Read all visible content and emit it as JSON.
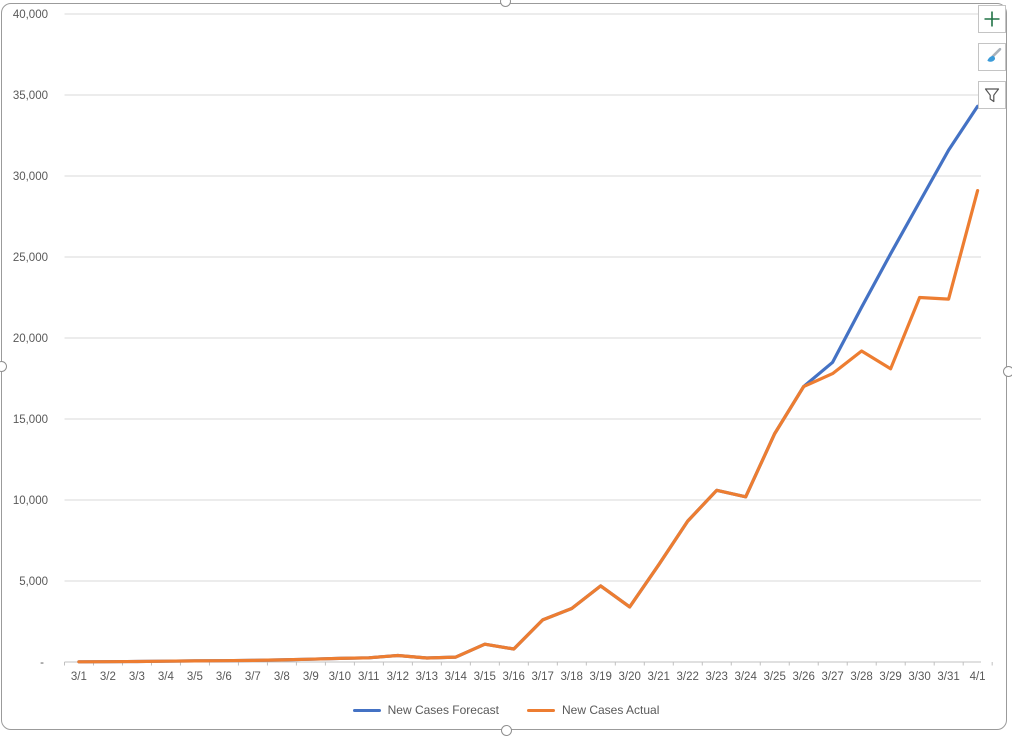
{
  "chart_data": {
    "type": "line",
    "title": "",
    "categories": [
      "3/1",
      "3/2",
      "3/3",
      "3/4",
      "3/5",
      "3/6",
      "3/7",
      "3/8",
      "3/9",
      "3/10",
      "3/11",
      "3/12",
      "3/13",
      "3/14",
      "3/15",
      "3/16",
      "3/17",
      "3/18",
      "3/19",
      "3/20",
      "3/21",
      "3/22",
      "3/23",
      "3/24",
      "3/25",
      "3/26",
      "3/27",
      "3/28",
      "3/29",
      "3/30",
      "3/31",
      "4/1"
    ],
    "series": [
      {
        "name": "New Cases Forecast",
        "color": "#4472C4",
        "values": [
          10,
          20,
          30,
          50,
          70,
          80,
          100,
          130,
          170,
          220,
          260,
          400,
          250,
          300,
          1100,
          800,
          2600,
          3300,
          4700,
          3400,
          6000,
          8700,
          10600,
          10200,
          14100,
          17000,
          18500,
          21900,
          25200,
          28400,
          31600,
          34300
        ]
      },
      {
        "name": "New Cases Actual",
        "color": "#ED7D31",
        "values": [
          10,
          20,
          30,
          50,
          70,
          80,
          100,
          130,
          170,
          220,
          260,
          400,
          250,
          300,
          1100,
          800,
          2600,
          3300,
          4700,
          3400,
          6000,
          8700,
          10600,
          10200,
          14100,
          17000,
          17800,
          19200,
          18100,
          22500,
          22400,
          29100
        ]
      }
    ],
    "ylim": [
      0,
      40000
    ],
    "ytick_step": 5000,
    "ytick_labels": [
      "-",
      "5,000",
      "10,000",
      "15,000",
      "20,000",
      "25,000",
      "30,000",
      "35,000",
      "40,000"
    ],
    "xlabel": "",
    "ylabel": "",
    "grid": true,
    "legend_position": "bottom",
    "axis_text_color": "#595959",
    "gridline_color": "#d9d9d9",
    "axis_line_color": "#c0c0c0"
  },
  "toolbar": {
    "buttons": [
      {
        "name": "chart-elements",
        "icon": "plus-icon",
        "color": "#217346"
      },
      {
        "name": "chart-styles",
        "icon": "paintbrush-icon",
        "color": "#3b9bd9"
      },
      {
        "name": "chart-filters",
        "icon": "funnel-icon",
        "color": "#555555"
      }
    ]
  },
  "selection": {
    "state": "chart-selected",
    "handle_positions": [
      "top",
      "right",
      "bottom",
      "left"
    ]
  }
}
